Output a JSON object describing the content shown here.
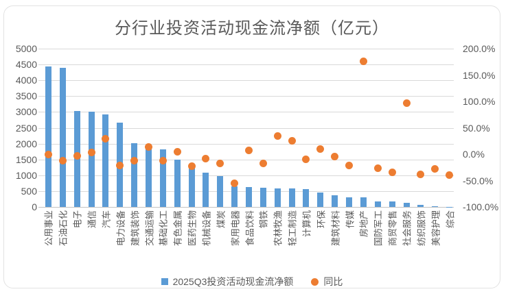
{
  "chart_data": {
    "type": "combo",
    "title": "分行业投资活动现金流净额（亿元）",
    "categories": [
      "公用事业",
      "石油石化",
      "电子",
      "通信",
      "汽车",
      "电力设备",
      "建筑装饰",
      "交通运输",
      "基础化工",
      "有色金属",
      "医药生物",
      "机械设备",
      "煤炭",
      "家用电器",
      "食品饮料",
      "钢铁",
      "农林牧渔",
      "轻工制造",
      "计算机",
      "环保",
      "建筑材料",
      "传媒",
      "房地产",
      "国防军工",
      "商贸零售",
      "社会服务",
      "纺织服饰",
      "美容护理",
      "综合"
    ],
    "series": [
      {
        "name": "2025Q3投资活动现金流净额",
        "type": "bar",
        "axis": "left",
        "color": "#5B9BD5",
        "marker": "square",
        "values": [
          4440,
          4390,
          3030,
          3000,
          2930,
          2670,
          2020,
          1860,
          1810,
          1500,
          1280,
          1080,
          970,
          650,
          620,
          610,
          595,
          585,
          565,
          450,
          375,
          305,
          300,
          180,
          170,
          125,
          65,
          30,
          10
        ]
      },
      {
        "name": "同比",
        "type": "scatter",
        "axis": "right",
        "color": "#ED7D31",
        "marker": "circle",
        "unit": "%",
        "values": [
          0,
          -12,
          -3,
          3,
          29,
          -22,
          -12,
          14,
          -12,
          4,
          -23,
          -8,
          -18,
          -55,
          7,
          -18,
          35,
          26,
          -10,
          10,
          -4,
          -21,
          176,
          -26,
          -35,
          97,
          -38,
          -28,
          -40
        ]
      }
    ],
    "left_axis": {
      "min": 0,
      "max": 5000,
      "step": 500,
      "ticks": [
        "0",
        "500",
        "1000",
        "1500",
        "2000",
        "2500",
        "3000",
        "3500",
        "4000",
        "4500",
        "5000"
      ]
    },
    "right_axis": {
      "min": -100,
      "max": 200,
      "step": 50,
      "ticks": [
        "-100.0%",
        "-50.0%",
        "0.0%",
        "50.0%",
        "100.0%",
        "150.0%",
        "200.0%"
      ]
    },
    "grid": true,
    "legend_position": "bottom",
    "text_color": "#595959",
    "grid_color": "#d9d9d9"
  }
}
